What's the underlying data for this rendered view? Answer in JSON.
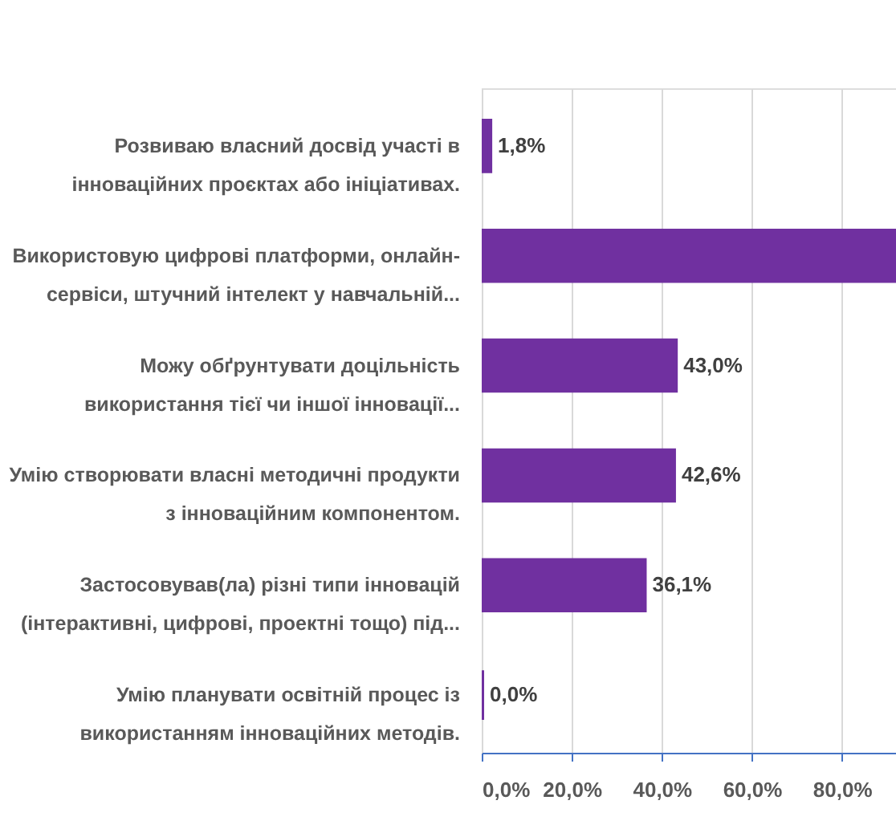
{
  "chart_data": {
    "type": "bar",
    "orientation": "horizontal",
    "categories": [
      "Розвиваю власний досвід участі в\nінноваційних проєктах або ініціативах.",
      "Використовую цифрові платформи, онлайн-\nсервіси, штучний інтелект у навчальній...",
      "Можу обґрунтувати доцільність\nвикористання тієї чи іншої інновації...",
      "Умію створювати власні методичні продукти\nз інноваційним компонентом.",
      "Застосовував(ла) різні типи інновацій\n(інтерактивні, цифрові, проектні тощо) під...",
      "Умію планувати освітній процес із\nвикористанням інноваційних методів."
    ],
    "values": [
      1.8,
      92,
      43.0,
      42.6,
      36.1,
      0.0
    ],
    "value_labels": [
      "1,8%",
      null,
      "43,0%",
      "42,6%",
      "36,1%",
      "0,0%"
    ],
    "color": "#7030a0",
    "xlim": [
      0,
      92
    ],
    "xticks": [
      {
        "value": 0,
        "label": "0,0%"
      },
      {
        "value": 20,
        "label": "20,0%"
      },
      {
        "value": 40,
        "label": "40,0%"
      },
      {
        "value": 60,
        "label": "60,0%"
      },
      {
        "value": 80,
        "label": "80,0%"
      }
    ],
    "grid": true
  }
}
